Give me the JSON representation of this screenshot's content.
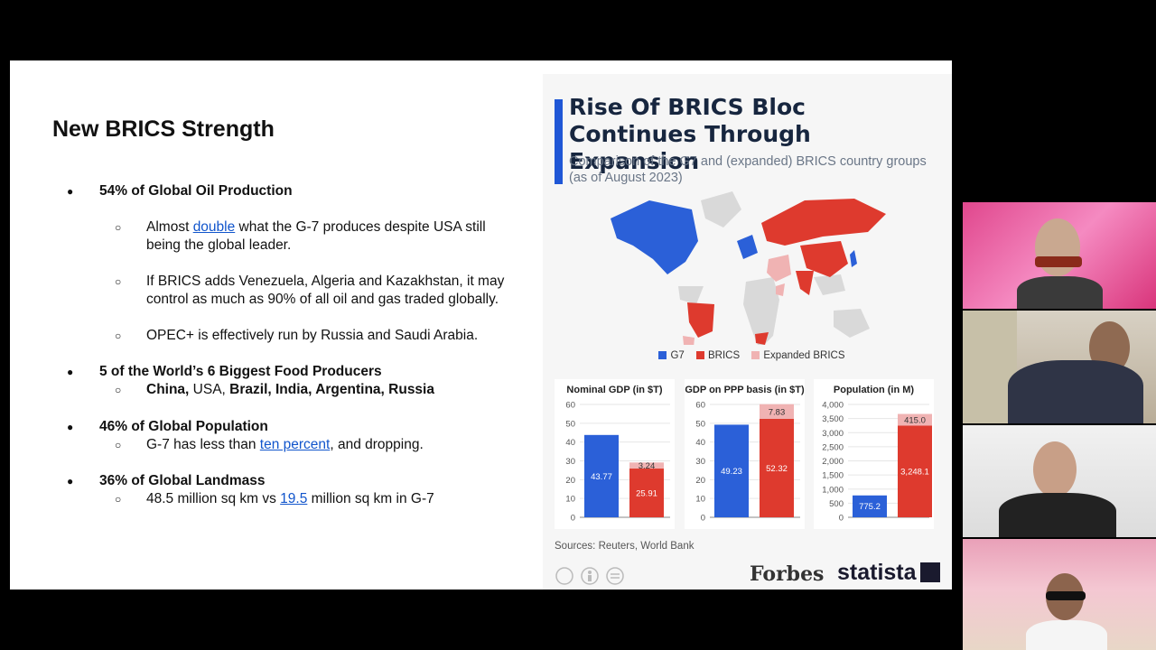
{
  "slide": {
    "title": "New BRICS Strength",
    "bullets": [
      {
        "text": "54% of Global Oil Production"
      },
      {
        "sub": [
          {
            "pre": "Almost ",
            "link": "double",
            "post": " what the G-7 produces despite USA still",
            "line2": "being the global leader."
          },
          {
            "line1": "If BRICS adds Venezuela, Algeria and Kazakhstan, it may",
            "line2": "control as much as 90% of all oil and gas traded globally."
          },
          {
            "line1": "OPEC+ is effectively run by Russia and Saudi Arabia."
          }
        ]
      },
      {
        "text": "5 of the World’s 6 Biggest Food Producers"
      },
      {
        "food": {
          "a": "China,",
          "b": " USA, ",
          "c": "Brazil, India, Argentina, Russia"
        }
      },
      {
        "text": "46% of Global Population"
      },
      {
        "pop": {
          "pre": "G-7 has less than ",
          "link": "ten percent",
          "post": ", and dropping."
        }
      },
      {
        "text": "36% of Global Landmass"
      },
      {
        "land": {
          "pre": "48.5 million sq km vs ",
          "link": "19.5",
          "post": " million sq km in G-7"
        }
      }
    ],
    "bullet_symbol": "●",
    "sub_symbol": "○"
  },
  "infographic": {
    "title": "Rise Of BRICS Bloc Continues Through Expansion",
    "subtitle": "Comparison of the G7 and (expanded) BRICS country groups (as of August 2023)",
    "legend": [
      "G7",
      "BRICS",
      "Expanded BRICS"
    ],
    "sources": "Sources: Reuters, World Bank",
    "brand1": "Forbes",
    "brand2": "statista",
    "colors": {
      "g7": "#2b60d8",
      "brics": "#de3a2e",
      "expanded": "#f0b3b3",
      "map_other": "#d9d9d9",
      "title": "#17263f"
    }
  },
  "chart_data": [
    {
      "type": "bar",
      "title": "Nominal GDP (in $T)",
      "categories": [
        "G7",
        "BRICS"
      ],
      "series": [
        {
          "name": "G7",
          "values": [
            43.77,
            0
          ]
        },
        {
          "name": "BRICS",
          "values": [
            0,
            25.91
          ]
        },
        {
          "name": "Expanded BRICS",
          "values": [
            0,
            3.24
          ]
        }
      ],
      "ylim": [
        0,
        60
      ],
      "yticks": [
        "0",
        "10",
        "20",
        "30",
        "40",
        "50",
        "60"
      ],
      "labels": [
        "43.77",
        "25.91",
        "3.24"
      ]
    },
    {
      "type": "bar",
      "title": "GDP on PPP basis (in $T)",
      "categories": [
        "G7",
        "BRICS"
      ],
      "series": [
        {
          "name": "G7",
          "values": [
            49.23,
            0
          ]
        },
        {
          "name": "BRICS",
          "values": [
            0,
            52.32
          ]
        },
        {
          "name": "Expanded BRICS",
          "values": [
            0,
            7.83
          ]
        }
      ],
      "ylim": [
        0,
        60
      ],
      "yticks": [
        "0",
        "10",
        "20",
        "30",
        "40",
        "50",
        "60"
      ],
      "labels": [
        "49.23",
        "52.32",
        "7.83"
      ]
    },
    {
      "type": "bar",
      "title": "Population (in M)",
      "categories": [
        "G7",
        "BRICS"
      ],
      "series": [
        {
          "name": "G7",
          "values": [
            775.2,
            0
          ]
        },
        {
          "name": "BRICS",
          "values": [
            0,
            3248.1
          ]
        },
        {
          "name": "Expanded BRICS",
          "values": [
            0,
            415.0
          ]
        }
      ],
      "ylim": [
        0,
        4000
      ],
      "yticks": [
        "0",
        "500",
        "1,000",
        "1,500",
        "2,000",
        "2,500",
        "3,000",
        "3,500",
        "4,000"
      ],
      "labels": [
        "775.2",
        "3,248.1",
        "415.0"
      ]
    }
  ]
}
